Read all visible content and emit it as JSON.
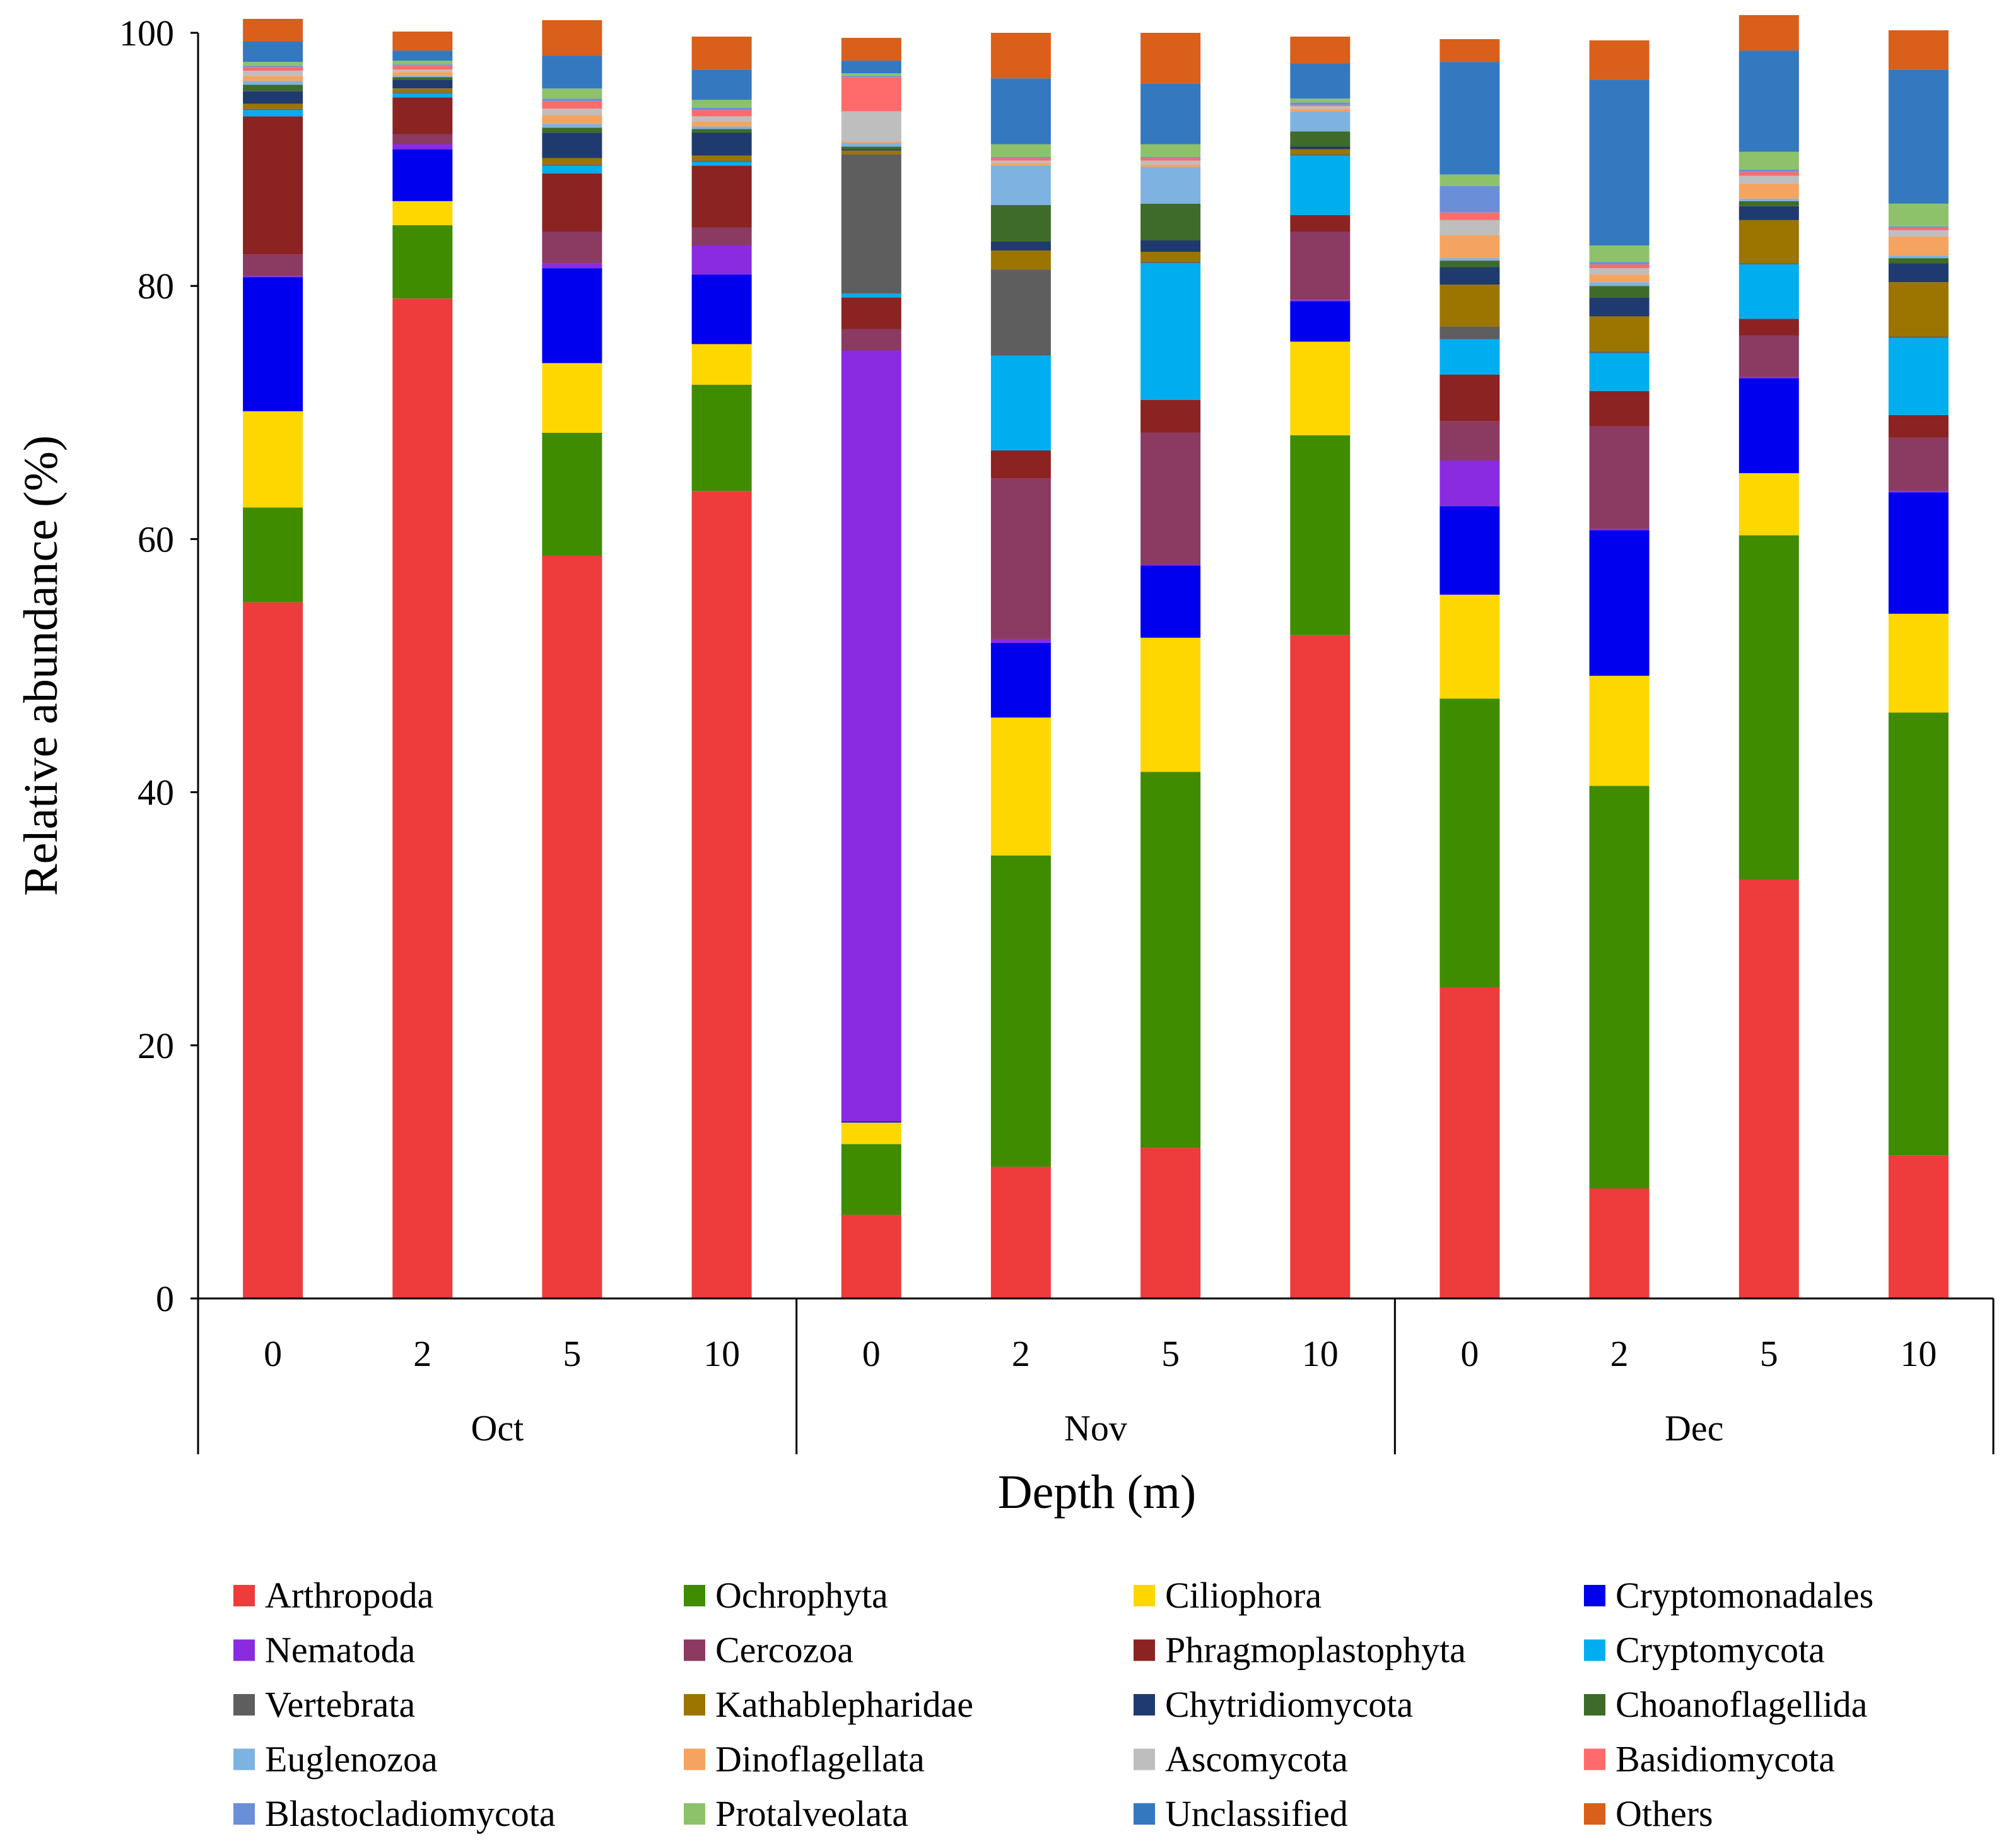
{
  "chart_data": {
    "type": "bar",
    "stacked": true,
    "ylabel": "Relative abundance (%)",
    "xlabel": "Depth (m)",
    "ylim": [
      0,
      100
    ],
    "yticks": [
      0,
      20,
      40,
      60,
      80,
      100
    ],
    "groups": [
      {
        "label": "Oct",
        "categories": [
          "0",
          "2",
          "5",
          "10"
        ]
      },
      {
        "label": "Nov",
        "categories": [
          "0",
          "2",
          "5",
          "10"
        ]
      },
      {
        "label": "Dec",
        "categories": [
          "0",
          "2",
          "5",
          "10"
        ]
      }
    ],
    "legend_position": "bottom",
    "series": [
      {
        "name": "Arthropoda",
        "color": "#EE3B3B",
        "values": [
          55.0,
          79.0,
          58.7,
          63.8,
          6.6,
          10.4,
          11.9,
          52.4,
          24.6,
          8.7,
          33.1,
          11.3
        ]
      },
      {
        "name": "Ochrophyta",
        "color": "#3F8C00",
        "values": [
          7.5,
          5.8,
          9.7,
          8.4,
          5.6,
          24.6,
          29.7,
          15.8,
          22.8,
          31.8,
          27.2,
          35.0
        ]
      },
      {
        "name": "Ciliophora",
        "color": "#FFD700",
        "values": [
          7.6,
          1.9,
          5.5,
          3.2,
          1.7,
          10.9,
          10.6,
          7.4,
          8.2,
          8.7,
          4.9,
          7.8
        ]
      },
      {
        "name": "Cryptomonadales",
        "color": "#0000EE",
        "values": [
          10.6,
          4.1,
          7.5,
          5.5,
          0.1,
          5.9,
          5.7,
          3.2,
          7.0,
          11.5,
          7.5,
          9.6
        ]
      },
      {
        "name": "Nematoda",
        "color": "#8A2BE2",
        "values": [
          0.1,
          0.4,
          0.4,
          2.3,
          60.9,
          0.3,
          0.1,
          0.1,
          3.6,
          0.1,
          0.1,
          0.1
        ]
      },
      {
        "name": "Cercozoa",
        "color": "#8B3A62",
        "values": [
          1.7,
          0.8,
          2.5,
          1.4,
          1.7,
          12.7,
          10.4,
          5.4,
          3.1,
          8.1,
          3.3,
          4.2
        ]
      },
      {
        "name": "Phragmoplastophyta",
        "color": "#8B2323",
        "values": [
          10.9,
          2.9,
          4.6,
          4.9,
          2.5,
          2.2,
          2.6,
          1.3,
          3.7,
          2.8,
          1.3,
          1.8
        ]
      },
      {
        "name": "Cryptomycota",
        "color": "#00AEEF",
        "values": [
          0.5,
          0.3,
          0.6,
          0.3,
          0.3,
          7.5,
          10.8,
          4.7,
          2.8,
          3.0,
          4.3,
          6.1
        ]
      },
      {
        "name": "Vertebrata",
        "color": "#5E5E5E",
        "values": [
          0.1,
          0.1,
          0.1,
          0.1,
          11.0,
          6.8,
          0.1,
          0.1,
          1.0,
          0.1,
          0.1,
          0.1
        ]
      },
      {
        "name": "Kathablepharidae",
        "color": "#9C7500",
        "values": [
          0.4,
          0.3,
          0.5,
          0.4,
          0.3,
          1.5,
          0.8,
          0.4,
          3.3,
          2.8,
          3.4,
          4.3
        ]
      },
      {
        "name": "Chytridiomycota",
        "color": "#1F3A6E",
        "values": [
          1.0,
          0.7,
          2.0,
          1.8,
          0.1,
          0.7,
          0.9,
          0.2,
          1.4,
          1.5,
          1.1,
          1.5
        ]
      },
      {
        "name": "Choanoflagellida",
        "color": "#3E6B2A",
        "values": [
          0.5,
          0.2,
          0.4,
          0.3,
          0.2,
          2.9,
          2.9,
          1.2,
          0.5,
          0.9,
          0.4,
          0.4
        ]
      },
      {
        "name": "Euglenozoa",
        "color": "#7EB2E0",
        "values": [
          0.3,
          0.1,
          0.3,
          0.2,
          0.3,
          3.1,
          2.9,
          1.6,
          0.2,
          0.3,
          0.2,
          0.2
        ]
      },
      {
        "name": "Dinoflagellata",
        "color": "#F4A460",
        "values": [
          0.4,
          0.3,
          0.7,
          0.4,
          0.1,
          0.2,
          0.2,
          0.2,
          1.8,
          0.6,
          1.2,
          1.5
        ]
      },
      {
        "name": "Ascomycota",
        "color": "#BEBEBE",
        "values": [
          0.4,
          0.2,
          0.5,
          0.4,
          2.4,
          0.2,
          0.3,
          0.2,
          1.2,
          0.5,
          0.6,
          0.5
        ]
      },
      {
        "name": "Basidiomycota",
        "color": "#FF6B6B",
        "values": [
          0.3,
          0.3,
          0.6,
          0.5,
          2.7,
          0.2,
          0.2,
          0.1,
          0.6,
          0.3,
          0.3,
          0.2
        ]
      },
      {
        "name": "Blastocladiomycota",
        "color": "#6A8FD8",
        "values": [
          0.1,
          0.1,
          0.2,
          0.2,
          0.1,
          0.1,
          0.1,
          0.2,
          2.1,
          0.2,
          0.2,
          0.1
        ]
      },
      {
        "name": "Protalveolata",
        "color": "#8DC26B",
        "values": [
          0.3,
          0.3,
          0.8,
          0.6,
          0.2,
          1.0,
          1.0,
          0.3,
          0.9,
          1.3,
          1.4,
          1.8
        ]
      },
      {
        "name": "Unclassified",
        "color": "#3478C0",
        "values": [
          1.6,
          0.8,
          2.6,
          2.4,
          1.0,
          5.2,
          4.8,
          2.8,
          8.9,
          13.1,
          8.0,
          10.6
        ]
      },
      {
        "name": "Others",
        "color": "#D95F1A",
        "values": [
          1.8,
          1.5,
          2.8,
          2.6,
          1.8,
          3.6,
          4.0,
          2.1,
          1.8,
          3.1,
          2.8,
          3.1
        ]
      }
    ]
  }
}
